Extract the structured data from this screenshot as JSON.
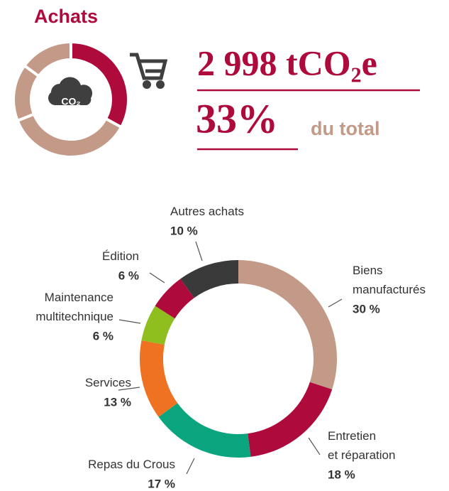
{
  "header": {
    "title": "Achats",
    "icon_label": "CO₂",
    "emissions": "2 998 tCO₂e",
    "share": 33,
    "share_label": "33%",
    "share_suffix": "du total"
  },
  "chart_data": {
    "type": "donut",
    "categories": [
      "Biens\nmanufacturés",
      "Entretien\net réparation",
      "Repas du Crous",
      "Services",
      "Maintenance\nmultitechnique",
      "Édition",
      "Autres achats"
    ],
    "values": [
      30,
      18,
      17,
      13,
      6,
      6,
      10
    ],
    "value_labels": [
      "30 %",
      "18 %",
      "17 %",
      "13 %",
      "6 %",
      "6 %",
      "10 %"
    ],
    "colors": [
      "#c39a87",
      "#ae0a3c",
      "#0aa57f",
      "#ef7122",
      "#8fbf1f",
      "#ae0a3c",
      "#3a3a3a"
    ]
  }
}
